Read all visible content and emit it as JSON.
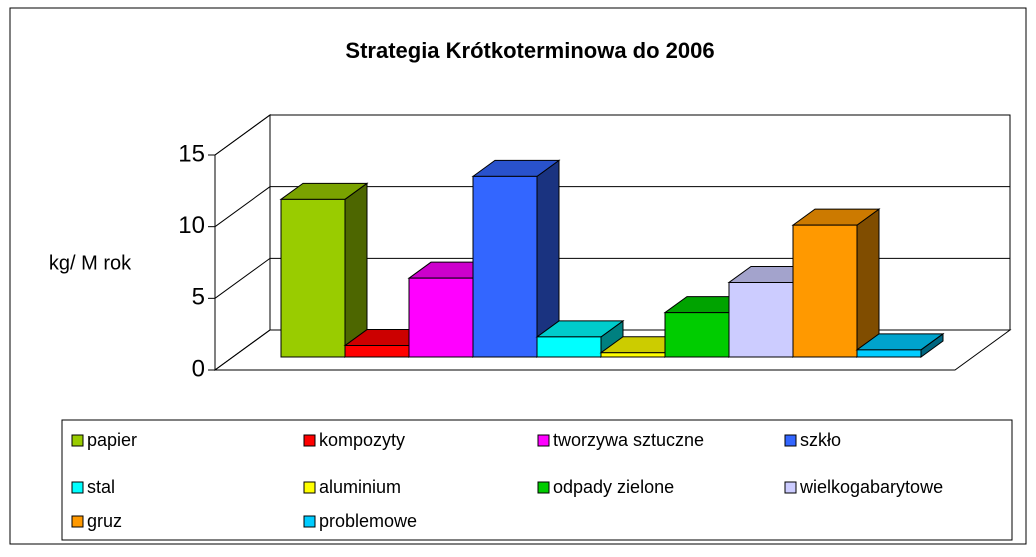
{
  "chart_data": {
    "type": "bar3d",
    "title": "Strategia Krótkoterminowa do 2006",
    "y_label": "kg/ M rok",
    "categories": [
      null
    ],
    "ylim": [
      0,
      15
    ],
    "yticks": [
      0,
      5,
      10,
      15
    ],
    "grid": true,
    "legend_position": "bottom",
    "series": [
      {
        "name": "papier",
        "color": "#99cc00",
        "values": [
          11
        ]
      },
      {
        "name": "kompozyty",
        "color": "#ff0000",
        "values": [
          0.8
        ]
      },
      {
        "name": "tworzywa sztuczne",
        "color": "#ff00ff",
        "values": [
          5.5
        ]
      },
      {
        "name": "szkło",
        "color": "#3366ff",
        "values": [
          12.6
        ]
      },
      {
        "name": "stal",
        "color": "#00ffff",
        "values": [
          1.4
        ]
      },
      {
        "name": "aluminium",
        "color": "#ffff00",
        "values": [
          0.3
        ]
      },
      {
        "name": "odpady zielone",
        "color": "#00cc00",
        "values": [
          3.1
        ]
      },
      {
        "name": "wielkogabarytowe",
        "color": "#ccccff",
        "values": [
          5.2
        ]
      },
      {
        "name": "gruz",
        "color": "#ff9900",
        "values": [
          9.2
        ]
      },
      {
        "name": "problemowe",
        "color": "#00ccff",
        "values": [
          0.5
        ]
      }
    ]
  }
}
